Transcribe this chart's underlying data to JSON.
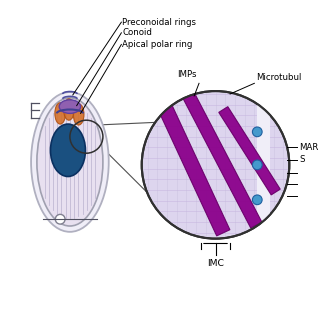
{
  "cell_color": "#e8e0f0",
  "cell_border": "#a0a0b0",
  "nucleus_color": "#1a5080",
  "nucleus_border": "#0a3060",
  "rhoptry_color": "#d4702a",
  "labels": {
    "preconoidal": "Preconoidal rings",
    "conoid": "Conoid",
    "apical_polar": "Apical polar ring",
    "imps": "IMPs",
    "microtubules": "Microtubul",
    "mar": "MAR",
    "s": "S",
    "imc": "IMC"
  },
  "purple_band_color": "#8b008b",
  "blue_dot_color": "#4499cc",
  "zoomed_bg": "#ddd5ee",
  "zoomed_grid_h": "#c8b8e0",
  "zoomed_grid_v": "#c0b8d8",
  "white_strip": "#f0eef8"
}
